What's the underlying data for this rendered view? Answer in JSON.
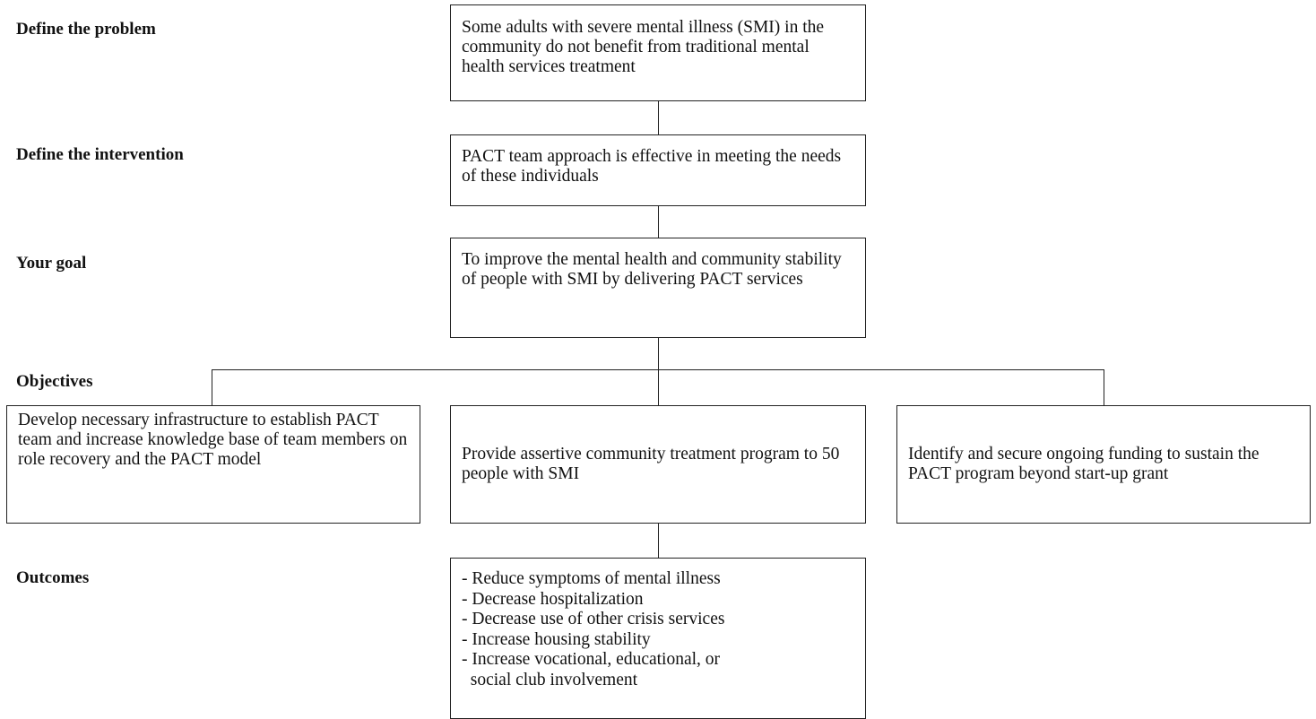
{
  "labels": {
    "problem": "Define the problem",
    "intervention": "Define the intervention",
    "goal": "Your goal",
    "objectives": "Objectives",
    "outcomes": "Outcomes"
  },
  "boxes": {
    "problem": "Some adults with severe mental illness (SMI) in the community do not benefit from traditional mental health services treatment",
    "intervention": "PACT team approach is effective in meeting the needs of these individuals",
    "goal": "To improve the mental health and community stability of people with SMI by delivering PACT services"
  },
  "objectives": [
    "Develop necessary infrastructure to establish PACT team and increase knowledge base of team members on role recovery and the PACT model",
    "Provide assertive community treatment program to 50 people with SMI",
    "Identify and secure ongoing funding to sustain the PACT program beyond start-up grant"
  ],
  "outcomes": [
    "- Reduce symptoms of mental illness",
    "- Decrease hospitalization",
    "- Decrease use of other crisis services",
    "- Increase housing stability",
    "- Increase vocational, educational, or",
    "  social club involvement"
  ]
}
